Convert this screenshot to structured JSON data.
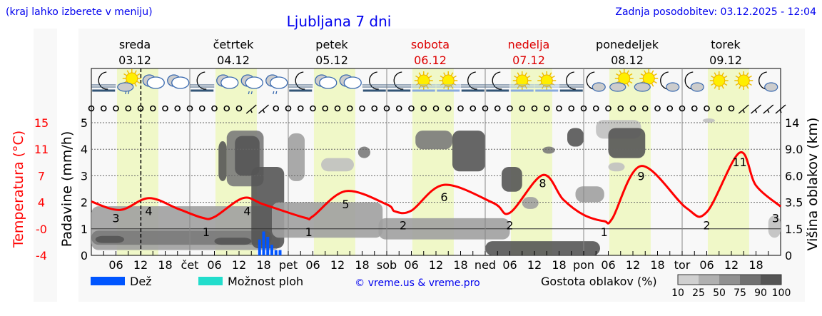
{
  "header": {
    "hint": "(kraj lahko izberete v meniju)",
    "title": "Ljubljana 7 dni",
    "updated": "Zadnja posodobitev: 03.12.2025 - 12:04"
  },
  "days": [
    {
      "name": "sreda",
      "date": "03.12",
      "weekend": false,
      "short": ""
    },
    {
      "name": "četrtek",
      "date": "04.12",
      "weekend": false,
      "short": "čet"
    },
    {
      "name": "petek",
      "date": "05.12",
      "weekend": false,
      "short": "pet"
    },
    {
      "name": "sobota",
      "date": "06.12",
      "weekend": true,
      "short": "sob"
    },
    {
      "name": "nedelja",
      "date": "07.12",
      "weekend": true,
      "short": "ned"
    },
    {
      "name": "ponedeljek",
      "date": "08.12",
      "weekend": false,
      "short": "pon"
    },
    {
      "name": "torek",
      "date": "09.12",
      "weekend": false,
      "short": "tor"
    }
  ],
  "colors": {
    "temperature": "#ff0000",
    "rain": "#0055ff",
    "showers": "#22ddcc",
    "daylight": "#f0f8c8",
    "weekend": "#dd0000",
    "link": "#0000ee"
  },
  "legend": {
    "rain": "Dež",
    "showers": "Možnost ploh",
    "credit": "© vreme.us & vreme.pro",
    "cloud_density": "Gostota oblakov (%)",
    "density_ticks": [
      "10",
      "25",
      "50",
      "75",
      "90",
      "100"
    ],
    "density_colors": [
      "#d0d0d0",
      "#b0b0b0",
      "#909090",
      "#707070",
      "#555555"
    ]
  },
  "chart_data": {
    "type": "line",
    "now": "03.12 12:04",
    "x_hour_ticks": [
      "06",
      "12",
      "18"
    ],
    "daylight": {
      "from": "06:15",
      "to": "16:20"
    },
    "axes": {
      "temperature": {
        "label": "Temperatura (°C)",
        "ticks": [
          "15",
          "11",
          "7",
          "4",
          "-0",
          "-4"
        ],
        "range": [
          -4,
          15
        ]
      },
      "precipitation": {
        "label": "Padavine (mm/h)",
        "ticks": [
          "5",
          "4",
          "3",
          "2",
          "1",
          "0"
        ],
        "range": [
          0,
          5
        ]
      },
      "cloud_height": {
        "label": "Višina oblakov (km)",
        "ticks": [
          "14",
          "9.0",
          "6.0",
          "3.5",
          "1.5",
          "0"
        ]
      }
    },
    "temperature": [
      [
        "03.12 00:00",
        3.7
      ],
      [
        "03.12 07:00",
        2.5
      ],
      [
        "03.12 14:00",
        4.2
      ],
      [
        "03.12 21:00",
        2.7
      ],
      [
        "04.12 03:00",
        1.4
      ],
      [
        "04.12 06:00",
        1.5
      ],
      [
        "04.12 13:00",
        4.2
      ],
      [
        "04.12 18:00",
        3.3
      ],
      [
        "05.12 04:00",
        1.4
      ],
      [
        "05.12 06:00",
        1.6
      ],
      [
        "05.12 14:00",
        5.2
      ],
      [
        "06.12 00:00",
        3.3
      ],
      [
        "06.12 02:00",
        2.3
      ],
      [
        "06.12 06:00",
        2.4
      ],
      [
        "06.12 14:00",
        6.1
      ],
      [
        "07.12 02:00",
        3.5
      ],
      [
        "07.12 06:00",
        2.1
      ],
      [
        "07.12 14:00",
        7.5
      ],
      [
        "07.12 19:00",
        4.0
      ],
      [
        "08.12 00:00",
        1.8
      ],
      [
        "08.12 05:00",
        0.9
      ],
      [
        "08.12 07:00",
        1.3
      ],
      [
        "08.12 14:00",
        8.8
      ],
      [
        "09.12 01:00",
        2.8
      ],
      [
        "09.12 06:00",
        2.2
      ],
      [
        "09.12 14:00",
        10.7
      ],
      [
        "09.12 18:00",
        6.0
      ],
      [
        "10.12 00:00",
        3.0
      ]
    ],
    "temperature_labels": [
      [
        "03.12 06:00",
        "3"
      ],
      [
        "03.12 14:00",
        "4"
      ],
      [
        "04.12 04:00",
        "1"
      ],
      [
        "04.12 14:00",
        "4"
      ],
      [
        "05.12 05:00",
        "1"
      ],
      [
        "05.12 14:00",
        "5"
      ],
      [
        "06.12 04:00",
        "2"
      ],
      [
        "06.12 14:00",
        "6"
      ],
      [
        "07.12 06:00",
        "2"
      ],
      [
        "07.12 14:00",
        "8"
      ],
      [
        "08.12 05:00",
        "1"
      ],
      [
        "08.12 14:00",
        "9"
      ],
      [
        "09.12 06:00",
        "2"
      ],
      [
        "09.12 14:00",
        "11"
      ],
      [
        "10.12 00:00",
        "3"
      ]
    ],
    "precipitation": [
      [
        "04.12 17:00",
        0.6
      ],
      [
        "04.12 18:00",
        0.9
      ],
      [
        "04.12 19:00",
        0.7
      ],
      [
        "04.12 20:00",
        0.4
      ],
      [
        "04.12 21:00",
        0.2
      ],
      [
        "04.12 22:00",
        0.2
      ]
    ],
    "clouds": [
      {
        "from": "03.12 00:00",
        "to": "04.12 22:00",
        "km": [
          0.3,
          3.2
        ],
        "density": 50
      },
      {
        "from": "03.12 00:00",
        "to": "04.12 20:00",
        "km": [
          0.6,
          1.4
        ],
        "density": 75
      },
      {
        "from": "03.12 01:00",
        "to": "03.12 08:00",
        "km": [
          0.7,
          1.1
        ],
        "density": 90
      },
      {
        "from": "04.12 06:00",
        "to": "04.12 15:00",
        "km": [
          0.6,
          1.0
        ],
        "density": 90
      },
      {
        "from": "04.12 07:00",
        "to": "04.12 09:00",
        "km": [
          5.5,
          10.5
        ],
        "density": 90
      },
      {
        "from": "04.12 09:00",
        "to": "04.12 18:00",
        "km": [
          5.0,
          12.5
        ],
        "density": 75
      },
      {
        "from": "04.12 11:00",
        "to": "04.12 17:00",
        "km": [
          6.0,
          11.5
        ],
        "density": 90
      },
      {
        "from": "04.12 15:00",
        "to": "04.12 23:00",
        "km": [
          0.4,
          7.0
        ],
        "density": 90
      },
      {
        "from": "04.12 20:00",
        "to": "05.12 23:00",
        "km": [
          1.0,
          3.5
        ],
        "density": 50
      },
      {
        "from": "05.12 00:00",
        "to": "05.12 04:00",
        "km": [
          5.5,
          12.0
        ],
        "density": 50
      },
      {
        "from": "05.12 08:00",
        "to": "05.12 16:00",
        "km": [
          6.5,
          8.0
        ],
        "density": 25
      },
      {
        "from": "05.12 17:00",
        "to": "05.12 20:00",
        "km": [
          8.0,
          9.5
        ],
        "density": 75
      },
      {
        "from": "05.12 22:00",
        "to": "07.12 06:00",
        "km": [
          0.9,
          2.3
        ],
        "density": 50
      },
      {
        "from": "06.12 07:00",
        "to": "06.12 16:00",
        "km": [
          9.0,
          12.5
        ],
        "density": 75
      },
      {
        "from": "06.12 16:00",
        "to": "07.12 00:00",
        "km": [
          6.5,
          12.5
        ],
        "density": 90
      },
      {
        "from": "07.12 04:00",
        "to": "07.12 09:00",
        "km": [
          4.5,
          7.0
        ],
        "density": 90
      },
      {
        "from": "07.12 09:00",
        "to": "07.12 13:00",
        "km": [
          3.0,
          4.0
        ],
        "density": 50
      },
      {
        "from": "07.12 00:00",
        "to": "08.12 04:00",
        "km": [
          0.0,
          0.8
        ],
        "density": 90
      },
      {
        "from": "07.12 14:00",
        "to": "07.12 17:00",
        "km": [
          8.5,
          9.5
        ],
        "density": 75
      },
      {
        "from": "07.12 20:00",
        "to": "08.12 00:00",
        "km": [
          9.5,
          13.0
        ],
        "density": 90
      },
      {
        "from": "07.12 22:00",
        "to": "08.12 05:00",
        "km": [
          3.5,
          5.0
        ],
        "density": 50
      },
      {
        "from": "08.12 03:00",
        "to": "08.12 14:00",
        "km": [
          11.0,
          14.5
        ],
        "density": 25
      },
      {
        "from": "08.12 06:00",
        "to": "08.12 15:00",
        "km": [
          8.0,
          13.0
        ],
        "density": 90
      },
      {
        "from": "08.12 06:00",
        "to": "08.12 10:00",
        "km": [
          6.5,
          7.5
        ],
        "density": 25
      },
      {
        "from": "09.12 05:00",
        "to": "09.12 08:00",
        "km": [
          14.0,
          14.8
        ],
        "density": 25
      },
      {
        "from": "09.12 21:00",
        "to": "10.12 00:00",
        "km": [
          1.0,
          2.5
        ],
        "density": 25
      }
    ],
    "weather_icons": [
      "moon-fog",
      "sun-cloud-rain",
      "cloud",
      "cloud",
      "moon-fog",
      "cloud",
      "cloud-rain",
      "cloud-rain",
      "moon-fog",
      "cloud",
      "cloud",
      "moon-fog",
      "moon-fog",
      "sun-fog",
      "sun-fog",
      "moon-fog",
      "moon-fog",
      "sun-fog",
      "sun-fog",
      "moon-fog",
      "moon-cloud",
      "sun-cloud",
      "sun-cloud",
      "moon-cloud",
      "moon-cloud",
      "sun",
      "sun",
      "moon-cloud"
    ],
    "wind_barbs_at": [
      13,
      14,
      53,
      54,
      55,
      56
    ],
    "wind_symbol_count": 57
  }
}
